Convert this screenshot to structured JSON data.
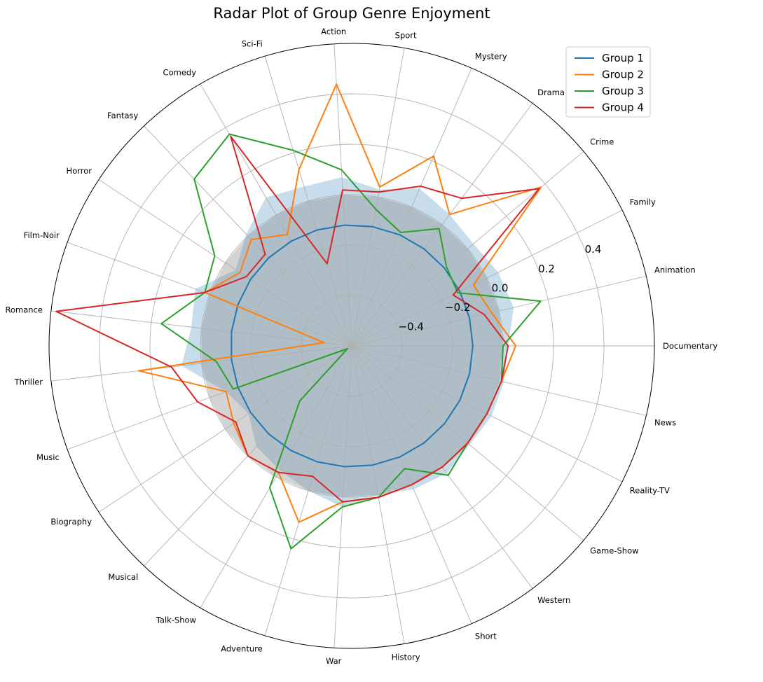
{
  "chart_data": {
    "type": "radar",
    "title": "Radar Plot of Group Genre Enjoyment",
    "categories": [
      "Documentary",
      "Animation",
      "Family",
      "Crime",
      "Drama",
      "Mystery",
      "Sport",
      "Action",
      "Sci-Fi",
      "Comedy",
      "Fantasy",
      "Horror",
      "Film-Noir",
      "Romance",
      "Thriller",
      "Music",
      "Biography",
      "Musical",
      "Talk-Show",
      "Adventure",
      "War",
      "History",
      "Short",
      "Western",
      "Game-Show",
      "Reality-TV",
      "News"
    ],
    "rlim": [
      -0.6,
      0.6
    ],
    "r_ticks": [
      -0.4,
      -0.2,
      0.0,
      0.2,
      0.4
    ],
    "r_tick_labels": [
      "−0.4",
      "−0.2",
      "0.0",
      "0.2",
      "0.4"
    ],
    "grid": true,
    "legend_position": "top-right",
    "series": [
      {
        "name": "Group 1",
        "color": "#1f77b4",
        "values": [
          -0.12,
          -0.12,
          -0.12,
          -0.12,
          -0.12,
          -0.12,
          -0.12,
          -0.12,
          -0.12,
          -0.12,
          -0.12,
          -0.12,
          -0.12,
          -0.12,
          -0.12,
          -0.12,
          -0.12,
          -0.12,
          -0.12,
          -0.12,
          -0.12,
          -0.12,
          -0.12,
          -0.12,
          -0.12,
          -0.12,
          -0.12
        ]
      },
      {
        "name": "Group 2",
        "color": "#ff7f0e",
        "values": [
          0.05,
          -0.03,
          -0.06,
          0.38,
          0.05,
          0.22,
          0.04,
          0.44,
          0.13,
          -0.09,
          -0.02,
          -0.07,
          0.02,
          -0.49,
          0.25,
          -0.07,
          -0.04,
          0.0,
          -0.02,
          0.13,
          0.02,
          0.01,
          0.0,
          0.0,
          0.0,
          0.0,
          0.01
        ]
      },
      {
        "name": "Group 3",
        "color": "#2ca02c",
        "values": [
          0.0,
          0.17,
          -0.13,
          -0.11,
          -0.02,
          -0.11,
          -0.05,
          0.1,
          0.21,
          0.37,
          0.31,
          0.05,
          0.02,
          0.16,
          -0.06,
          -0.1,
          -0.58,
          -0.3,
          0.05,
          0.24,
          0.04,
          0.01,
          -0.07,
          0.04,
          0.0,
          0.0,
          0.01
        ]
      },
      {
        "name": "Group 4",
        "color": "#d62728",
        "values": [
          0.02,
          -0.06,
          -0.15,
          0.37,
          0.13,
          0.09,
          0.02,
          0.02,
          -0.26,
          0.36,
          -0.1,
          -0.1,
          0.02,
          0.58,
          0.12,
          0.05,
          -0.05,
          0.0,
          -0.02,
          -0.06,
          0.02,
          0.01,
          0.0,
          0.0,
          0.0,
          0.0,
          0.01
        ]
      }
    ],
    "filled_areas": [
      {
        "color": "#1f77b4",
        "opacity": 0.25,
        "values": [
          0.02,
          0.06,
          0.05,
          0.03,
          0.05,
          0.08,
          0.03,
          0.07,
          0.06,
          0.08,
          0.01,
          -0.05,
          0.06,
          0.04,
          0.08,
          -0.07,
          -0.11,
          -0.05,
          -0.03,
          0.0,
          0.04,
          0.0,
          0.02,
          0.03,
          0.01,
          0.02,
          0.02
        ]
      },
      {
        "color": "#808080",
        "opacity": 0.35,
        "values": [
          0.0,
          0.0,
          0.0,
          0.0,
          0.0,
          0.0,
          0.0,
          0.0,
          0.0,
          0.0,
          0.0,
          0.0,
          0.0,
          0.0,
          0.0,
          0.0,
          0.0,
          0.0,
          0.0,
          0.0,
          0.0,
          0.0,
          0.0,
          0.0,
          0.0,
          0.0,
          0.0
        ]
      }
    ]
  }
}
